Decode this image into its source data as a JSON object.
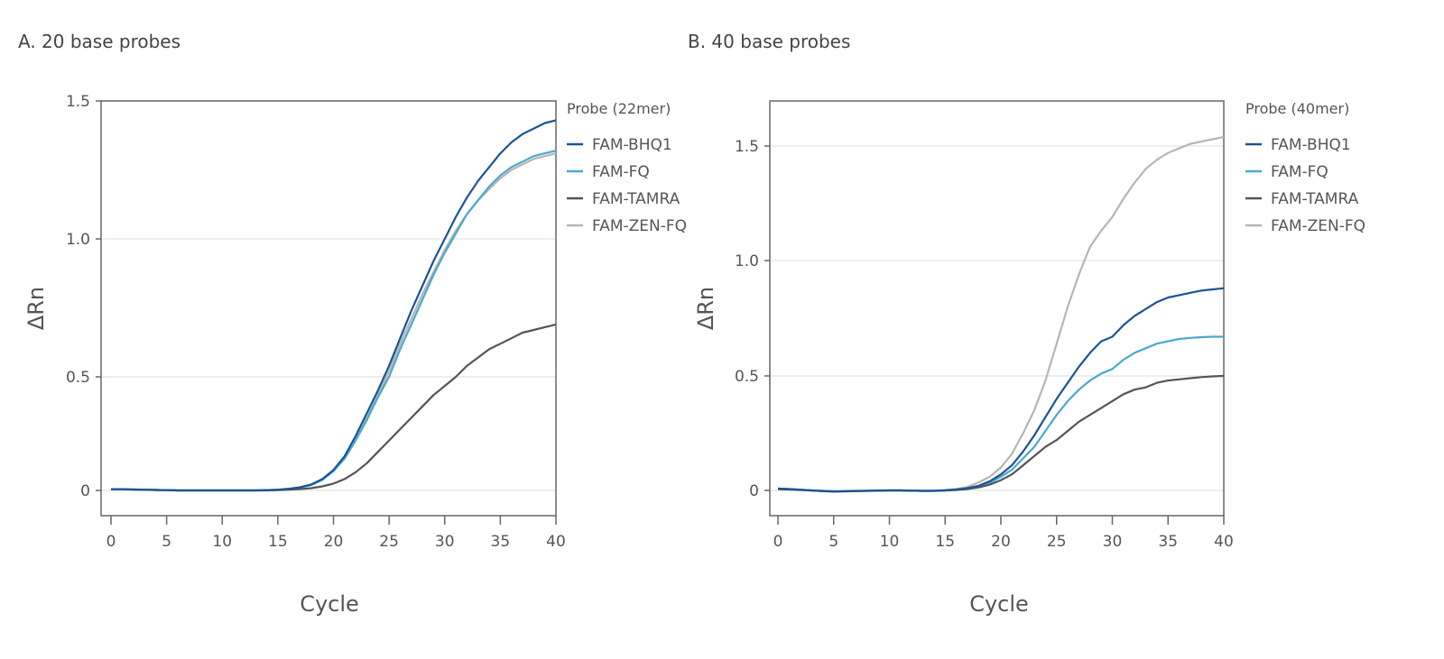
{
  "chart_data": [
    {
      "type": "line",
      "title": "A. 20 base  probes",
      "xlabel": "Cycle",
      "ylabel": "ΔRn",
      "xlim": [
        0,
        40
      ],
      "ylim": [
        -0.09,
        1.5
      ],
      "xticks": [
        "0",
        "5",
        "10",
        "15",
        "20",
        "25",
        "30",
        "35",
        "40"
      ],
      "yticks": [
        "0",
        "0.5",
        "1.0",
        "1.5"
      ],
      "grid": "horizontal",
      "legend_title": "Probe (22mer)",
      "legend_placement": "right",
      "x": [
        0,
        1,
        2,
        3,
        4,
        5,
        6,
        7,
        8,
        9,
        10,
        11,
        12,
        13,
        14,
        15,
        16,
        17,
        18,
        19,
        20,
        21,
        22,
        23,
        24,
        25,
        26,
        27,
        28,
        29,
        30,
        31,
        32,
        33,
        34,
        35,
        36,
        37,
        38,
        39,
        40
      ],
      "series": [
        {
          "name": "FAM-BHQ1",
          "color": "#1a5494",
          "values": [
            0.005,
            0.005,
            0.004,
            0.003,
            0.002,
            0.001,
            0,
            0,
            0,
            0,
            0,
            0,
            0,
            0,
            0.001,
            0.003,
            0.007,
            0.014,
            0.026,
            0.05,
            0.09,
            0.15,
            0.24,
            0.34,
            0.44,
            0.54,
            0.64,
            0.74,
            0.83,
            0.92,
            1.0,
            1.08,
            1.15,
            1.21,
            1.26,
            1.31,
            1.35,
            1.38,
            1.4,
            1.42,
            1.43
          ]
        },
        {
          "name": "FAM-FQ",
          "color": "#4aa8cf",
          "values": [
            0.005,
            0.005,
            0.004,
            0.003,
            0.002,
            0.001,
            0,
            0,
            0,
            0,
            0,
            0,
            0,
            0,
            0.001,
            0.003,
            0.007,
            0.013,
            0.024,
            0.046,
            0.085,
            0.14,
            0.22,
            0.31,
            0.41,
            0.5,
            0.6,
            0.69,
            0.78,
            0.87,
            0.95,
            1.02,
            1.09,
            1.14,
            1.19,
            1.23,
            1.26,
            1.28,
            1.3,
            1.31,
            1.32
          ]
        },
        {
          "name": "FAM-TAMRA",
          "color": "#555555",
          "values": [
            0.005,
            0.005,
            0.004,
            0.003,
            0.002,
            0.001,
            0,
            0,
            0,
            0,
            0,
            0,
            0,
            0,
            0,
            0.001,
            0.003,
            0.006,
            0.01,
            0.018,
            0.03,
            0.05,
            0.08,
            0.12,
            0.17,
            0.22,
            0.27,
            0.32,
            0.37,
            0.42,
            0.46,
            0.5,
            0.54,
            0.57,
            0.6,
            0.62,
            0.64,
            0.66,
            0.67,
            0.68,
            0.69
          ]
        },
        {
          "name": "FAM-ZEN-FQ",
          "color": "#b5b5b5",
          "values": [
            0.005,
            0.005,
            0.004,
            0.003,
            0.002,
            0.001,
            0,
            0,
            0,
            0,
            0,
            0,
            0,
            0,
            0.001,
            0.003,
            0.007,
            0.013,
            0.025,
            0.048,
            0.088,
            0.145,
            0.23,
            0.32,
            0.42,
            0.52,
            0.62,
            0.71,
            0.8,
            0.88,
            0.96,
            1.03,
            1.09,
            1.14,
            1.18,
            1.22,
            1.25,
            1.27,
            1.29,
            1.3,
            1.31
          ]
        }
      ]
    },
    {
      "type": "line",
      "title": "B. 40 base probes",
      "xlabel": "Cycle",
      "ylabel": "ΔRn",
      "xlim": [
        0,
        40
      ],
      "ylim": [
        -0.11,
        1.7
      ],
      "xticks": [
        "0",
        "5",
        "10",
        "15",
        "20",
        "25",
        "30",
        "35",
        "40"
      ],
      "yticks": [
        "0",
        "0.5",
        "1.0",
        "1.5"
      ],
      "grid": "horizontal",
      "legend_title": "Probe (40mer)",
      "legend_placement": "right",
      "x": [
        0,
        1,
        2,
        3,
        4,
        5,
        6,
        7,
        8,
        9,
        10,
        11,
        12,
        13,
        14,
        15,
        16,
        17,
        18,
        19,
        20,
        21,
        22,
        23,
        24,
        25,
        26,
        27,
        28,
        29,
        30,
        31,
        32,
        33,
        34,
        35,
        36,
        37,
        38,
        39,
        40
      ],
      "series": [
        {
          "name": "FAM-BHQ1",
          "color": "#1a5494",
          "values": [
            0.008,
            0.006,
            0.003,
            0,
            -0.003,
            -0.005,
            -0.004,
            -0.003,
            -0.002,
            -0.001,
            0,
            0,
            -0.001,
            -0.002,
            -0.002,
            0,
            0.004,
            0.01,
            0.02,
            0.04,
            0.07,
            0.11,
            0.17,
            0.24,
            0.32,
            0.4,
            0.47,
            0.54,
            0.6,
            0.65,
            0.67,
            0.72,
            0.76,
            0.79,
            0.82,
            0.84,
            0.85,
            0.86,
            0.87,
            0.875,
            0.88
          ]
        },
        {
          "name": "FAM-FQ",
          "color": "#4aa8cf",
          "values": [
            0.008,
            0.006,
            0.003,
            0,
            -0.003,
            -0.005,
            -0.004,
            -0.003,
            -0.002,
            -0.001,
            0,
            0,
            -0.001,
            -0.002,
            -0.002,
            0,
            0.003,
            0.008,
            0.017,
            0.033,
            0.06,
            0.09,
            0.14,
            0.19,
            0.26,
            0.33,
            0.39,
            0.44,
            0.48,
            0.51,
            0.53,
            0.57,
            0.6,
            0.62,
            0.64,
            0.65,
            0.66,
            0.665,
            0.668,
            0.67,
            0.67
          ]
        },
        {
          "name": "FAM-TAMRA",
          "color": "#555555",
          "values": [
            0.005,
            0.004,
            0.002,
            0,
            -0.002,
            -0.004,
            -0.003,
            -0.002,
            -0.001,
            0,
            0,
            0,
            -0.001,
            -0.002,
            -0.002,
            0,
            0.002,
            0.006,
            0.013,
            0.025,
            0.045,
            0.07,
            0.11,
            0.15,
            0.19,
            0.22,
            0.26,
            0.3,
            0.33,
            0.36,
            0.39,
            0.42,
            0.44,
            0.45,
            0.47,
            0.48,
            0.485,
            0.49,
            0.495,
            0.498,
            0.5
          ]
        },
        {
          "name": "FAM-ZEN-FQ",
          "color": "#b5b5b5",
          "values": [
            0.008,
            0.006,
            0.003,
            0,
            -0.003,
            -0.005,
            -0.004,
            -0.003,
            -0.002,
            -0.001,
            0,
            0,
            -0.001,
            -0.002,
            -0.001,
            0.002,
            0.006,
            0.015,
            0.035,
            0.06,
            0.1,
            0.16,
            0.25,
            0.35,
            0.48,
            0.64,
            0.8,
            0.94,
            1.06,
            1.13,
            1.19,
            1.27,
            1.34,
            1.4,
            1.44,
            1.47,
            1.49,
            1.51,
            1.52,
            1.53,
            1.54
          ]
        }
      ]
    }
  ]
}
